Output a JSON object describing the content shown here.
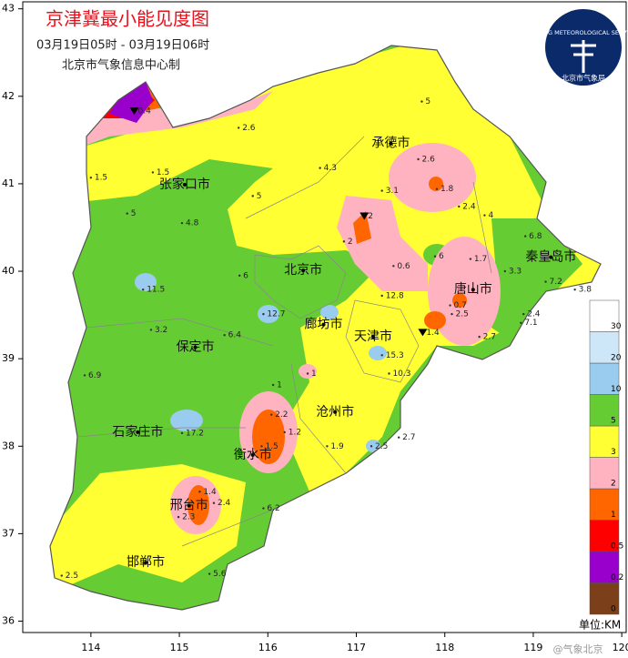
{
  "title": "京津冀最小能见度图",
  "subtitle": "03月19日05时 - 03月19日06时",
  "producer": "北京市气象信息中心制",
  "logo": {
    "en": "BEIJING METEOROLOGICAL SERVICE",
    "cn": "北京市气象局"
  },
  "watermark": "@气象北京",
  "axes": {
    "xlim": [
      113.23,
      120.05
    ],
    "ylim": [
      35.87,
      43.08
    ],
    "xticks": [
      114,
      115,
      116,
      117,
      118,
      119,
      120
    ],
    "yticks": [
      36,
      37,
      38,
      39,
      40,
      41,
      42,
      43
    ]
  },
  "cities": [
    {
      "name": "承德市",
      "lon": 117.39,
      "lat": 41.46
    },
    {
      "name": "张家口市",
      "lon": 115.06,
      "lat": 40.99
    },
    {
      "name": "北京市",
      "lon": 116.4,
      "lat": 40.01
    },
    {
      "name": "秦皇岛市",
      "lon": 119.2,
      "lat": 40.16
    },
    {
      "name": "唐山市",
      "lon": 118.32,
      "lat": 39.79
    },
    {
      "name": "廊坊市",
      "lon": 116.63,
      "lat": 39.39
    },
    {
      "name": "天津市",
      "lon": 117.19,
      "lat": 39.25
    },
    {
      "name": "保定市",
      "lon": 115.18,
      "lat": 39.13
    },
    {
      "name": "石家庄市",
      "lon": 114.53,
      "lat": 38.16
    },
    {
      "name": "沧州市",
      "lon": 116.76,
      "lat": 38.39
    },
    {
      "name": "衡水市",
      "lon": 115.83,
      "lat": 37.9
    },
    {
      "name": "邢台市",
      "lon": 115.11,
      "lat": 37.32
    },
    {
      "name": "邯郸市",
      "lon": 114.62,
      "lat": 36.67
    }
  ],
  "stations": [
    {
      "value": 5.0,
      "lon": 117.74,
      "lat": 41.94
    },
    {
      "value": 0.4,
      "lon": 114.49,
      "lat": 41.83,
      "symbol": "triangle"
    },
    {
      "value": 2.6,
      "lon": 115.67,
      "lat": 41.64
    },
    {
      "value": 1.5,
      "lon": 114.7,
      "lat": 41.13
    },
    {
      "value": 1.5,
      "lon": 114.0,
      "lat": 41.07
    },
    {
      "value": 4.3,
      "lon": 116.59,
      "lat": 41.18
    },
    {
      "value": 2.6,
      "lon": 117.7,
      "lat": 41.28
    },
    {
      "value": 1.8,
      "lon": 117.91,
      "lat": 40.94
    },
    {
      "value": 3.1,
      "lon": 117.29,
      "lat": 40.92
    },
    {
      "value": 2.4,
      "lon": 118.16,
      "lat": 40.74
    },
    {
      "value": 5.0,
      "lon": 115.83,
      "lat": 40.86
    },
    {
      "value": 5.0,
      "lon": 114.41,
      "lat": 40.66
    },
    {
      "value": 4.8,
      "lon": 115.03,
      "lat": 40.55
    },
    {
      "value": 2.0,
      "lon": 117.09,
      "lat": 40.63,
      "symbol": "triangle"
    },
    {
      "value": 2.0,
      "lon": 116.86,
      "lat": 40.34
    },
    {
      "value": 4.0,
      "lon": 118.45,
      "lat": 40.64
    },
    {
      "value": 6.8,
      "lon": 118.91,
      "lat": 40.4
    },
    {
      "value": 6.0,
      "lon": 117.89,
      "lat": 40.17
    },
    {
      "value": 1.7,
      "lon": 118.29,
      "lat": 40.14
    },
    {
      "value": 0.6,
      "lon": 117.42,
      "lat": 40.06
    },
    {
      "value": 3.3,
      "lon": 118.68,
      "lat": 40.0
    },
    {
      "value": 11.5,
      "lon": 114.59,
      "lat": 39.79
    },
    {
      "value": 6.0,
      "lon": 115.68,
      "lat": 39.95
    },
    {
      "value": 12.7,
      "lon": 115.95,
      "lat": 39.51
    },
    {
      "value": 12.8,
      "lon": 117.29,
      "lat": 39.72
    },
    {
      "value": 0.7,
      "lon": 118.06,
      "lat": 39.61
    },
    {
      "value": 2.5,
      "lon": 118.08,
      "lat": 39.51
    },
    {
      "value": 7.2,
      "lon": 119.14,
      "lat": 39.88
    },
    {
      "value": 3.8,
      "lon": 119.47,
      "lat": 39.79
    },
    {
      "value": 2.4,
      "lon": 118.89,
      "lat": 39.51
    },
    {
      "value": 1.4,
      "lon": 117.75,
      "lat": 39.3,
      "symbol": "triangle"
    },
    {
      "value": 2.7,
      "lon": 118.39,
      "lat": 39.25
    },
    {
      "value": 7.1,
      "lon": 118.86,
      "lat": 39.41
    },
    {
      "value": 3.2,
      "lon": 114.68,
      "lat": 39.33
    },
    {
      "value": 6.4,
      "lon": 115.51,
      "lat": 39.27
    },
    {
      "value": 1.0,
      "lon": 116.06,
      "lat": 38.7
    },
    {
      "value": 1.0,
      "lon": 116.45,
      "lat": 38.83
    },
    {
      "value": 15.3,
      "lon": 117.29,
      "lat": 39.04
    },
    {
      "value": 10.3,
      "lon": 117.37,
      "lat": 38.83
    },
    {
      "value": 6.9,
      "lon": 113.93,
      "lat": 38.81
    },
    {
      "value": 17.2,
      "lon": 115.03,
      "lat": 38.15
    },
    {
      "value": 2.2,
      "lon": 116.04,
      "lat": 38.36
    },
    {
      "value": 1.5,
      "lon": 115.93,
      "lat": 38.0
    },
    {
      "value": 1.2,
      "lon": 116.19,
      "lat": 38.16
    },
    {
      "value": 1.9,
      "lon": 116.67,
      "lat": 38.0
    },
    {
      "value": 2.5,
      "lon": 117.17,
      "lat": 38.0
    },
    {
      "value": 2.7,
      "lon": 117.48,
      "lat": 38.1
    },
    {
      "value": 1.4,
      "lon": 115.23,
      "lat": 37.48
    },
    {
      "value": 2.3,
      "lon": 114.99,
      "lat": 37.19
    },
    {
      "value": 2.4,
      "lon": 115.39,
      "lat": 37.35
    },
    {
      "value": 6.2,
      "lon": 115.95,
      "lat": 37.29
    },
    {
      "value": 2.5,
      "lon": 113.67,
      "lat": 36.52
    },
    {
      "value": 5.6,
      "lon": 115.34,
      "lat": 36.54
    }
  ],
  "legend": {
    "unit": "单位:KM",
    "levels": [
      0,
      0.2,
      0.5,
      1,
      2,
      3,
      5,
      10,
      20,
      30
    ],
    "colors": [
      "#7b3f1a",
      "#9900cc",
      "#ff0000",
      "#ff6600",
      "#ffb3c0",
      "#ffff33",
      "#66cc33",
      "#99ccee",
      "#cde7f8",
      "#ffffff"
    ]
  }
}
